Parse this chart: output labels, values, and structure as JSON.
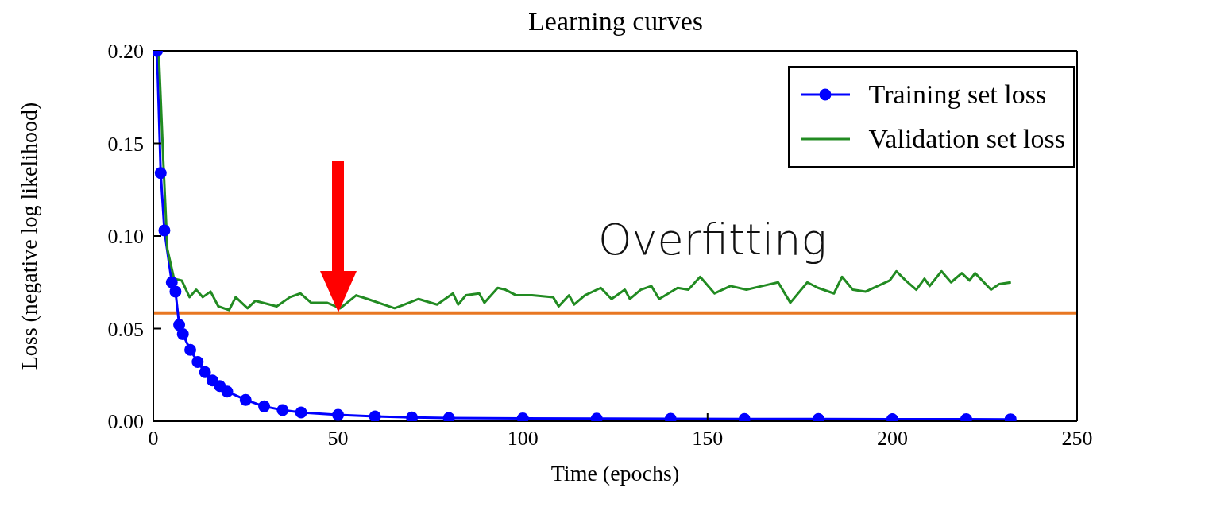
{
  "chart_data": {
    "type": "line",
    "title": "Learning curves",
    "xlabel": "Time (epochs)",
    "ylabel": "Loss (negative log likelihood)",
    "xlim": [
      0,
      250
    ],
    "xticks": [
      0,
      50,
      100,
      150,
      200,
      250
    ],
    "ylim": [
      0,
      0.2
    ],
    "yticks": [
      {
        "value": 0,
        "label": "0.00"
      },
      {
        "value": 0.05,
        "label": "0.05"
      },
      {
        "value": 0.1,
        "label": "0.10"
      },
      {
        "value": 0.15,
        "label": "0.15"
      },
      {
        "value": 0.2,
        "label": "0.20"
      }
    ],
    "legend": "top right",
    "series": [
      {
        "name": "Training set loss",
        "color": "#0000ff",
        "marker": "circle",
        "x": [
          1,
          2,
          3,
          5,
          6,
          7,
          8,
          10,
          12,
          14,
          16,
          18,
          20,
          25,
          30,
          35,
          40,
          50,
          60,
          70,
          80,
          100,
          120,
          140,
          160,
          180,
          200,
          220,
          232
        ],
        "values": [
          0.2,
          0.134,
          0.103,
          0.075,
          0.07,
          0.052,
          0.047,
          0.0385,
          0.032,
          0.0265,
          0.022,
          0.019,
          0.016,
          0.0115,
          0.008,
          0.006,
          0.0047,
          0.0034,
          0.0026,
          0.002,
          0.0017,
          0.0015,
          0.0014,
          0.0013,
          0.0012,
          0.0012,
          0.0011,
          0.0011,
          0.001
        ]
      },
      {
        "name": "Validation set loss",
        "color": "#228b22",
        "marker": "none",
        "x": [
          1.5,
          2.7,
          3.8,
          5.6,
          7.7,
          9.8,
          11.6,
          13.4,
          15.5,
          17.6,
          20.5,
          22.3,
          25.5,
          27.6,
          33.4,
          37,
          39.8,
          42.7,
          47,
          50.6,
          54.9,
          58,
          65.3,
          71.8,
          76.8,
          81.1,
          82.5,
          84.6,
          88.2,
          89.6,
          93.2,
          95.3,
          98.2,
          102.5,
          108.2,
          109.7,
          112.5,
          113.9,
          116.8,
          121.1,
          124,
          127.6,
          129,
          131.9,
          134.8,
          136.9,
          141.9,
          144.8,
          148,
          151.9,
          156.2,
          160.5,
          164.8,
          169.1,
          172.4,
          177,
          179.9,
          184.2,
          186.4,
          189.3,
          192.8,
          199.3,
          201.1,
          203.6,
          206.5,
          208.7,
          210.1,
          213.3,
          215.9,
          218.8,
          220.9,
          222.4,
          226.7,
          228.9,
          232.1
        ],
        "values": [
          0.198,
          0.141,
          0.093,
          0.077,
          0.076,
          0.067,
          0.071,
          0.067,
          0.07,
          0.062,
          0.06,
          0.067,
          0.061,
          0.065,
          0.062,
          0.067,
          0.069,
          0.064,
          0.064,
          0.061,
          0.068,
          0.066,
          0.061,
          0.066,
          0.063,
          0.069,
          0.063,
          0.068,
          0.069,
          0.064,
          0.072,
          0.071,
          0.068,
          0.068,
          0.067,
          0.062,
          0.068,
          0.063,
          0.068,
          0.072,
          0.066,
          0.071,
          0.066,
          0.071,
          0.073,
          0.066,
          0.072,
          0.071,
          0.078,
          0.069,
          0.073,
          0.071,
          0.073,
          0.075,
          0.064,
          0.075,
          0.072,
          0.069,
          0.078,
          0.071,
          0.07,
          0.076,
          0.081,
          0.076,
          0.071,
          0.077,
          0.073,
          0.081,
          0.075,
          0.08,
          0.076,
          0.08,
          0.071,
          0.074,
          0.075
        ]
      }
    ],
    "ref_lines": [
      {
        "axis": "y",
        "value": 0.0585,
        "color": "#e87722"
      }
    ],
    "annotations": [
      "Overfitting"
    ]
  }
}
